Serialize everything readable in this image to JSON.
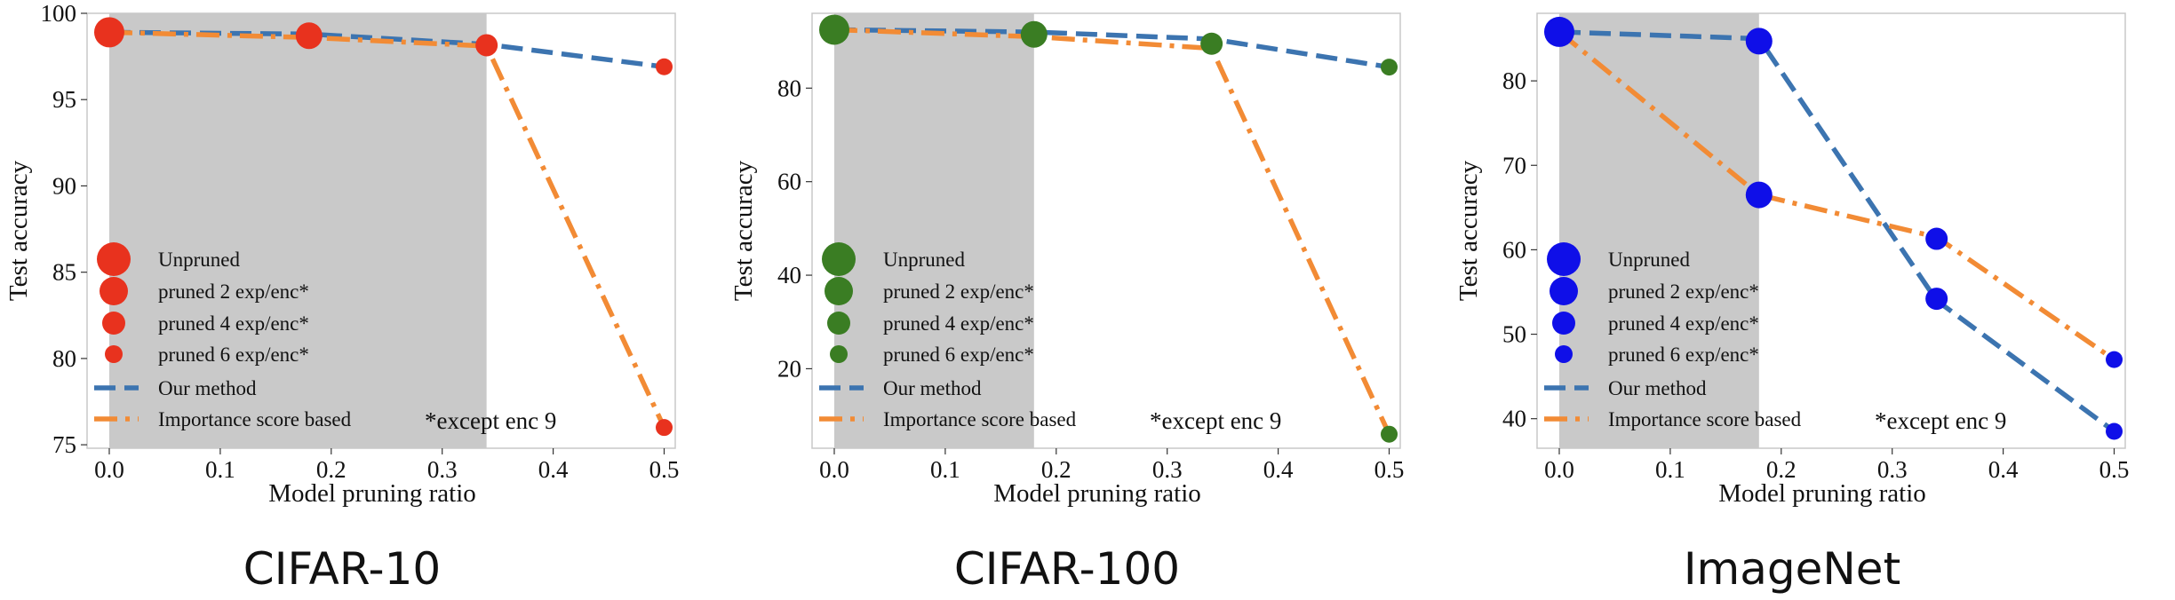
{
  "chart_data": [
    {
      "type": "line",
      "caption": "CIFAR-10",
      "xlabel": "Model pruning ratio",
      "ylabel": "Test accuracy",
      "xlim": [
        -0.02,
        0.51
      ],
      "ylim": [
        74.8,
        100
      ],
      "xticks": [
        "0.0",
        "0.1",
        "0.2",
        "0.3",
        "0.4",
        "0.5"
      ],
      "yticks": [
        "75",
        "80",
        "85",
        "90",
        "95",
        "100"
      ],
      "shaded_x": [
        0.0,
        0.34
      ],
      "marker_color": "#e8321e",
      "note": "*except enc 9",
      "legend": [
        "Unpruned",
        "pruned 2 exp/enc*",
        "pruned 4 exp/enc*",
        "pruned 6 exp/enc*",
        "Our method",
        "Importance score based"
      ],
      "series": [
        {
          "name": "Our method",
          "color": "#3c74b0",
          "x": [
            0.0,
            0.18,
            0.34,
            0.5
          ],
          "y": [
            98.9,
            98.8,
            98.2,
            96.9
          ]
        },
        {
          "name": "Importance score based",
          "color": "#f28b35",
          "x": [
            0.0,
            0.18,
            0.34,
            0.5
          ],
          "y": [
            98.9,
            98.6,
            98.1,
            76.0
          ]
        }
      ],
      "markers": [
        {
          "x": 0.0,
          "y": 98.9,
          "level": 0
        },
        {
          "x": 0.18,
          "y": 98.7,
          "level": 1
        },
        {
          "x": 0.34,
          "y": 98.15,
          "level": 2
        },
        {
          "x": 0.5,
          "y": 96.9,
          "level": 3
        },
        {
          "x": 0.5,
          "y": 76.0,
          "level": 3
        }
      ]
    },
    {
      "type": "line",
      "caption": "CIFAR-100",
      "xlabel": "Model pruning ratio",
      "ylabel": "Test accuracy",
      "xlim": [
        -0.02,
        0.51
      ],
      "ylim": [
        3,
        96
      ],
      "xticks": [
        "0.0",
        "0.1",
        "0.2",
        "0.3",
        "0.4",
        "0.5"
      ],
      "yticks": [
        "20",
        "40",
        "60",
        "80"
      ],
      "shaded_x": [
        0.0,
        0.18
      ],
      "marker_color": "#3a7d23",
      "note": "*except enc 9",
      "legend": [
        "Unpruned",
        "pruned 2 exp/enc*",
        "pruned 4 exp/enc*",
        "pruned 6 exp/enc*",
        "Our method",
        "Importance score based"
      ],
      "series": [
        {
          "name": "Our method",
          "color": "#3c74b0",
          "x": [
            0.0,
            0.18,
            0.34,
            0.5
          ],
          "y": [
            92.5,
            92.0,
            90.5,
            84.5
          ]
        },
        {
          "name": "Importance score based",
          "color": "#f28b35",
          "x": [
            0.0,
            0.18,
            0.34,
            0.5
          ],
          "y": [
            92.5,
            91.0,
            88.5,
            6.0
          ]
        }
      ],
      "markers": [
        {
          "x": 0.0,
          "y": 92.5,
          "level": 0
        },
        {
          "x": 0.18,
          "y": 91.5,
          "level": 1
        },
        {
          "x": 0.34,
          "y": 89.5,
          "level": 2
        },
        {
          "x": 0.5,
          "y": 84.5,
          "level": 3
        },
        {
          "x": 0.5,
          "y": 6.0,
          "level": 3
        }
      ]
    },
    {
      "type": "line",
      "caption": "ImageNet",
      "xlabel": "Model pruning ratio",
      "ylabel": "Test accuracy",
      "xlim": [
        -0.02,
        0.51
      ],
      "ylim": [
        36.5,
        88
      ],
      "xticks": [
        "0.0",
        "0.1",
        "0.2",
        "0.3",
        "0.4",
        "0.5"
      ],
      "yticks": [
        "40",
        "50",
        "60",
        "70",
        "80"
      ],
      "shaded_x": [
        0.0,
        0.18
      ],
      "marker_color": "#0f0fe8",
      "note": "*except enc 9",
      "legend": [
        "Unpruned",
        "pruned 2 exp/enc*",
        "pruned 4 exp/enc*",
        "pruned 6 exp/enc*",
        "Our method",
        "Importance score based"
      ],
      "series": [
        {
          "name": "Our method",
          "color": "#3c74b0",
          "x": [
            0.0,
            0.18,
            0.34,
            0.5
          ],
          "y": [
            85.8,
            85.0,
            54.0,
            38.5
          ]
        },
        {
          "name": "Importance score based",
          "color": "#f28b35",
          "x": [
            0.0,
            0.18,
            0.34,
            0.5
          ],
          "y": [
            85.8,
            66.5,
            61.5,
            47.0
          ]
        }
      ],
      "markers": [
        {
          "x": 0.0,
          "y": 85.8,
          "level": 0
        },
        {
          "x": 0.18,
          "y": 84.7,
          "level": 1
        },
        {
          "x": 0.18,
          "y": 66.5,
          "level": 1
        },
        {
          "x": 0.34,
          "y": 61.3,
          "level": 2
        },
        {
          "x": 0.34,
          "y": 54.2,
          "level": 2
        },
        {
          "x": 0.5,
          "y": 47.0,
          "level": 3
        },
        {
          "x": 0.5,
          "y": 38.5,
          "level": 3
        }
      ]
    }
  ]
}
